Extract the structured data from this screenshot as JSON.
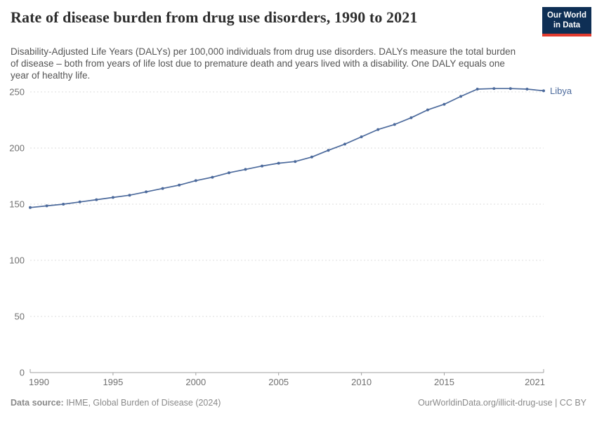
{
  "header": {
    "logo": {
      "line1": "Our World",
      "line2": "in Data"
    }
  },
  "footer": {
    "source_label": "Data source:",
    "source_text": " IHME, Global Burden of Disease (2024)",
    "link": "OurWorldinData.org/illicit-drug-use",
    "license": " | CC BY"
  },
  "colors": {
    "line": "#4c6a9c",
    "entity_label": "#4c6a9c",
    "grid": "#dedede",
    "axis": "#a1a1a1",
    "tick_label": "#717171",
    "title": "#2e2e2e",
    "subtitle": "#555555",
    "footer": "#8a8a8a",
    "logo_bg": "#0e2f55",
    "logo_red": "#e23b2e"
  },
  "chart_data": {
    "type": "line",
    "title": "Rate of disease burden from drug use disorders, 1990 to 2021",
    "subtitle": "Disability-Adjusted Life Years (DALYs) per 100,000 individuals from drug use disorders. DALYs measure the total burden of disease – both from years of life lost due to premature death and years lived with a disability. One DALY equals one year of healthy life.",
    "entity": "Libya",
    "x": [
      1990,
      1991,
      1992,
      1993,
      1994,
      1995,
      1996,
      1997,
      1998,
      1999,
      2000,
      2001,
      2002,
      2003,
      2004,
      2005,
      2006,
      2007,
      2008,
      2009,
      2010,
      2011,
      2012,
      2013,
      2014,
      2015,
      2016,
      2017,
      2018,
      2019,
      2020,
      2021
    ],
    "values": [
      147,
      148.5,
      150,
      152,
      154,
      156,
      158,
      161,
      164,
      167,
      171,
      174,
      178,
      181,
      184,
      186.5,
      188,
      192,
      198,
      203.5,
      210,
      216.5,
      221,
      227,
      234,
      239,
      246,
      252.5,
      253,
      253,
      252.5,
      251
    ],
    "xticks": [
      1990,
      1995,
      2000,
      2005,
      2010,
      2015,
      2021
    ],
    "yticks": [
      0,
      50,
      100,
      150,
      200,
      250
    ],
    "ylim": [
      0,
      250
    ],
    "xlabel": "",
    "ylabel": "",
    "grid": "dashed-horizontal",
    "legend_position": "line-end-label",
    "marker": "dot"
  }
}
